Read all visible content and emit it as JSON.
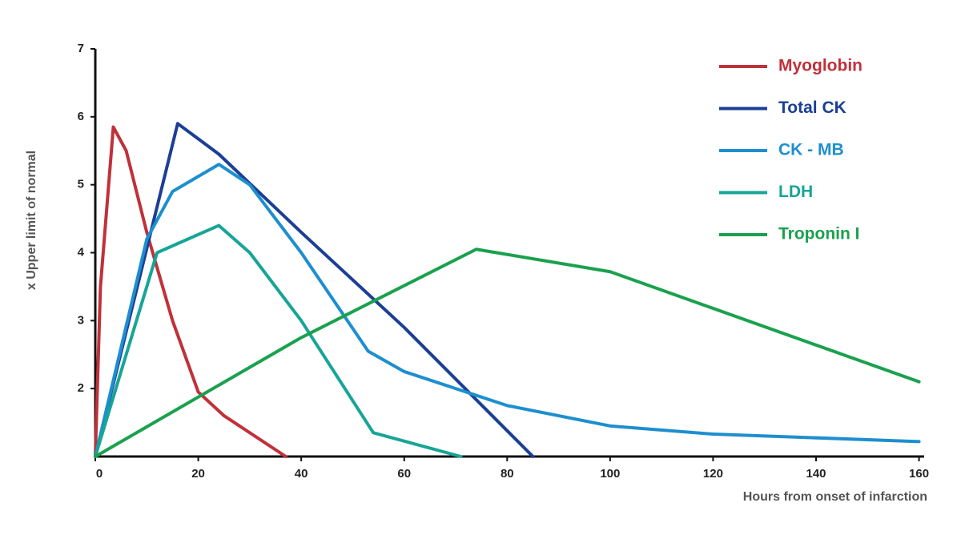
{
  "chart_data": {
    "type": "line",
    "x_label": "Hours  from onset of infarction",
    "y_label": "x Upper limit of normal",
    "xlim": [
      0,
      161
    ],
    "xticks": [
      0,
      20,
      40,
      60,
      80,
      100,
      120,
      140,
      160
    ],
    "ylim": [
      1,
      7
    ],
    "yticks": [
      2,
      3,
      4,
      5,
      6,
      7
    ],
    "series": [
      {
        "name": "Myoglobin",
        "color": "#c0313a",
        "x": [
          0,
          1,
          3.5,
          6,
          10,
          15,
          20,
          25,
          37
        ],
        "values": [
          1,
          3.5,
          5.85,
          5.5,
          4.3,
          3.0,
          1.95,
          1.6,
          1.0
        ]
      },
      {
        "name": "Total CK",
        "color": "#1b3f94",
        "x": [
          0,
          16,
          24,
          40,
          60,
          85
        ],
        "values": [
          1,
          5.9,
          5.45,
          4.3,
          2.9,
          1.0
        ]
      },
      {
        "name": "CK - MB",
        "color": "#1d8fcf",
        "x": [
          0,
          10,
          15,
          24,
          30,
          40,
          53,
          60,
          80,
          100,
          120,
          160
        ],
        "values": [
          1,
          4.2,
          4.9,
          5.3,
          5.0,
          4.0,
          2.55,
          2.25,
          1.75,
          1.45,
          1.33,
          1.22
        ]
      },
      {
        "name": "LDH",
        "color": "#17a596",
        "x": [
          0,
          12,
          24,
          30,
          40,
          54,
          71
        ],
        "values": [
          1,
          4.0,
          4.4,
          4.0,
          3.0,
          1.35,
          1.0
        ]
      },
      {
        "name": "Troponin I",
        "color": "#1aa14e",
        "x": [
          0,
          40,
          74,
          100,
          160
        ],
        "values": [
          1,
          2.75,
          4.05,
          3.72,
          2.1
        ]
      }
    ]
  }
}
